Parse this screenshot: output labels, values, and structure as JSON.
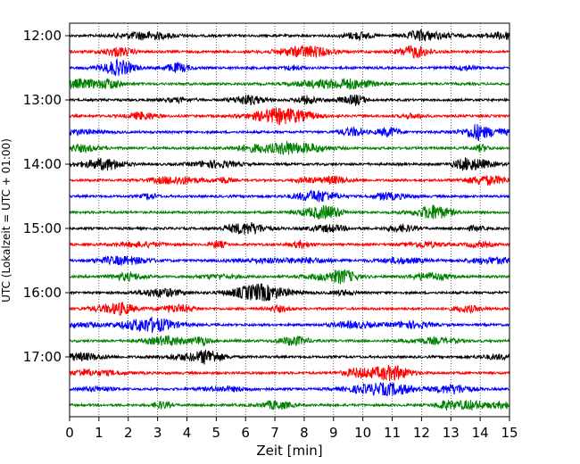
{
  "chart_data": {
    "type": "line",
    "title": "",
    "xlabel": "Zeit  [min]",
    "ylabel": "UTC (Lokalzeit = UTC + 01:00)",
    "xlim": [
      0,
      15
    ],
    "x_ticks": [
      "0",
      "1",
      "2",
      "3",
      "4",
      "5",
      "6",
      "7",
      "8",
      "9",
      "10",
      "11",
      "12",
      "13",
      "14",
      "15"
    ],
    "y_ticks": [
      "12:00",
      "13:00",
      "14:00",
      "15:00",
      "16:00",
      "17:00"
    ],
    "grid": "vertical-dotted",
    "trace_interval_min": 15,
    "trace_start": "12:00",
    "trace_count": 24,
    "trace_colors": [
      "#000000",
      "#ff0000",
      "#0000ff",
      "#008000"
    ],
    "trace_length_min": 15
  }
}
